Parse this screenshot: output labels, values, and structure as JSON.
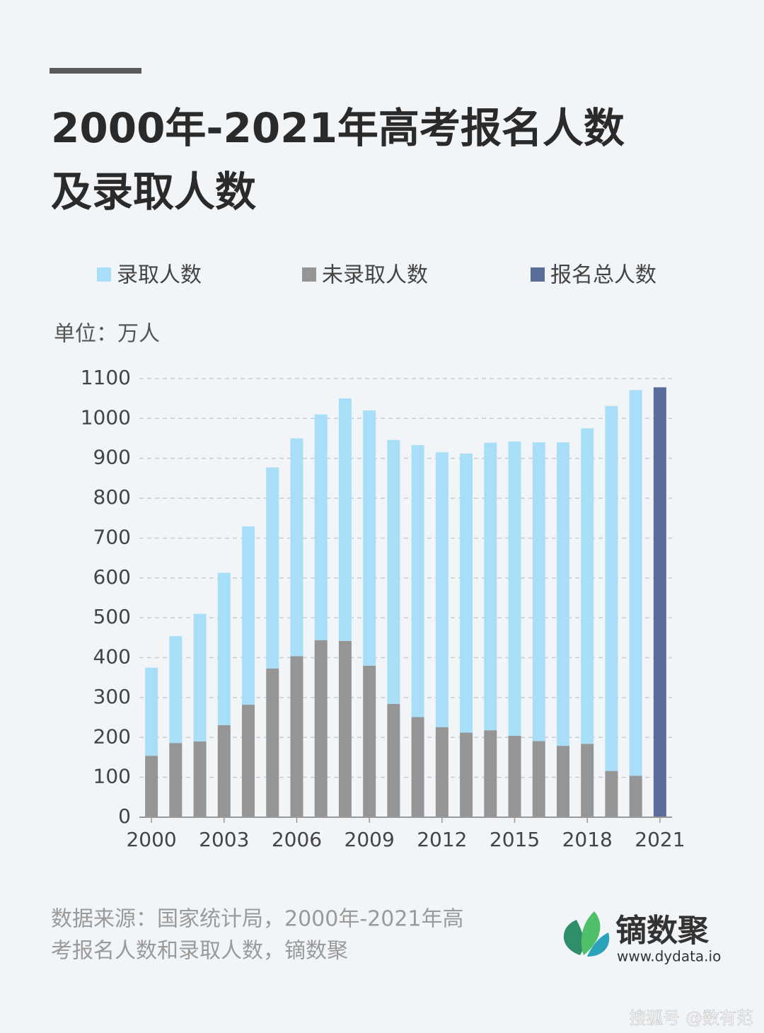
{
  "chart_data": {
    "type": "stacked_bar",
    "title": [
      "2000年-2021年高考报名人数",
      "及录取人数"
    ],
    "unit_label": "单位：万人",
    "categories": [
      "2000",
      null,
      null,
      "2003",
      null,
      null,
      "2006",
      null,
      null,
      "2009",
      null,
      null,
      "2012",
      null,
      null,
      "2015",
      null,
      null,
      "2018",
      null,
      null,
      "2021"
    ],
    "series": [
      {
        "name": "录取人数",
        "color": "#a9def9",
        "values": [
          221,
          268,
          320,
          382,
          447,
          504,
          546,
          566,
          608,
          640,
          662,
          682,
          689,
          700,
          721,
          738,
          749,
          761,
          791,
          915,
          967,
          null
        ]
      },
      {
        "name": "未录取人数",
        "color": "#959595",
        "values": [
          154,
          186,
          190,
          231,
          282,
          373,
          404,
          444,
          442,
          380,
          284,
          251,
          226,
          212,
          218,
          204,
          191,
          179,
          184,
          116,
          104,
          null
        ]
      },
      {
        "name": "报名总人数",
        "color": "#5a6d9a",
        "values": [
          null,
          null,
          null,
          null,
          null,
          null,
          null,
          null,
          null,
          null,
          null,
          null,
          null,
          null,
          null,
          null,
          null,
          null,
          null,
          null,
          null,
          1078
        ]
      }
    ],
    "ylim": [
      0,
      1100
    ],
    "yticks": [
      0,
      100,
      200,
      300,
      400,
      500,
      600,
      700,
      800,
      900,
      1000,
      1100
    ],
    "grid": true,
    "source": [
      "数据来源：国家统计局，2000年-2021年高",
      "考报名人数和录取人数，镝数聚"
    ],
    "brand": {
      "name": "镝数聚",
      "url": "www.dydata.io"
    },
    "watermark": "搜狐号 @数有范"
  }
}
